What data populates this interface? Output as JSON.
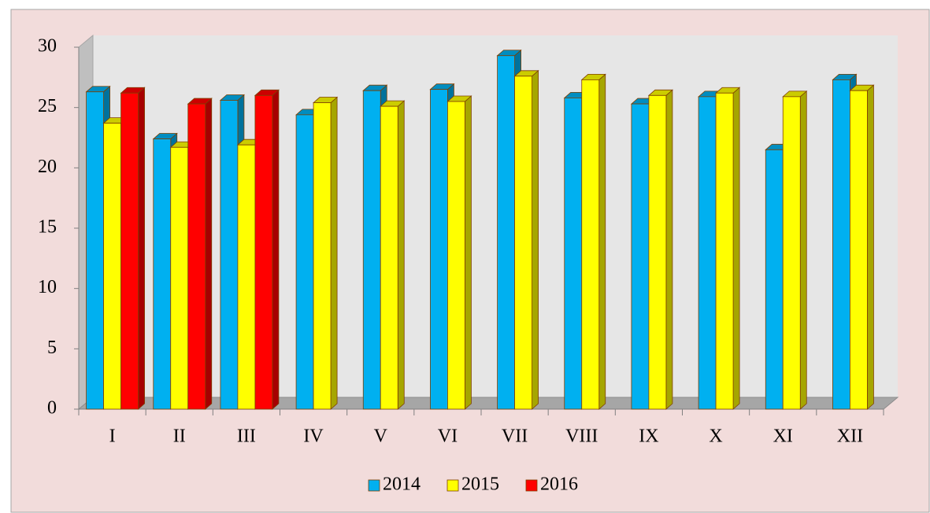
{
  "chart_data": {
    "type": "bar3d",
    "categories": [
      "I",
      "II",
      "III",
      "IV",
      "V",
      "VI",
      "VII",
      "VIII",
      "IX",
      "X",
      "XI",
      "XII"
    ],
    "series": [
      {
        "name": "2014",
        "color": "#00b0f0",
        "values": [
          26.3,
          22.4,
          25.6,
          24.4,
          26.4,
          26.5,
          29.3,
          25.8,
          25.3,
          25.9,
          21.5,
          27.3
        ]
      },
      {
        "name": "2015",
        "color": "#ffff00",
        "values": [
          23.7,
          21.7,
          21.9,
          25.4,
          25.1,
          25.5,
          27.6,
          27.3,
          26.0,
          26.2,
          25.9,
          26.4
        ]
      },
      {
        "name": "2016",
        "color": "#ff0000",
        "values": [
          26.2,
          25.3,
          26.0,
          null,
          null,
          null,
          null,
          null,
          null,
          null,
          null,
          null
        ]
      }
    ],
    "ylim": [
      0,
      30
    ],
    "yticks": [
      0,
      5,
      10,
      15,
      20,
      25,
      30
    ],
    "grid": false,
    "legend": "bottom"
  }
}
